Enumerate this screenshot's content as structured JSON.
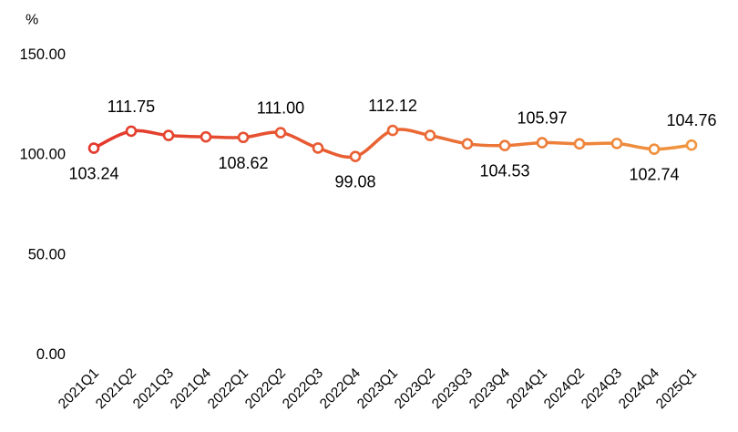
{
  "chart_data": {
    "type": "line",
    "smooth": true,
    "ylabel": "%",
    "ylim": [
      0,
      150
    ],
    "y_ticks": [
      "0.00",
      "50.00",
      "100.00",
      "150.00"
    ],
    "grid": false,
    "legend": false,
    "categories": [
      "2021Q1",
      "2021Q2",
      "2021Q3",
      "2021Q4",
      "2022Q1",
      "2022Q2",
      "2022Q3",
      "2022Q4",
      "2023Q1",
      "2023Q2",
      "2023Q3",
      "2023Q4",
      "2024Q1",
      "2024Q2",
      "2024Q3",
      "2024Q4",
      "2025Q1"
    ],
    "values": [
      103.24,
      111.75,
      109.6,
      108.9,
      108.62,
      111.0,
      103.3,
      99.08,
      112.12,
      109.6,
      105.4,
      104.53,
      105.97,
      105.4,
      105.6,
      102.74,
      104.76
    ],
    "data_labels": [
      "103.24",
      "111.75",
      null,
      null,
      "108.62",
      "111.00",
      null,
      "99.08",
      "112.12",
      null,
      null,
      "104.53",
      "105.97",
      null,
      null,
      "102.74",
      "104.76"
    ],
    "colors": {
      "line_start": "#e3372b",
      "line_end": "#f0953e",
      "marker_fill": "#ffffff"
    }
  }
}
